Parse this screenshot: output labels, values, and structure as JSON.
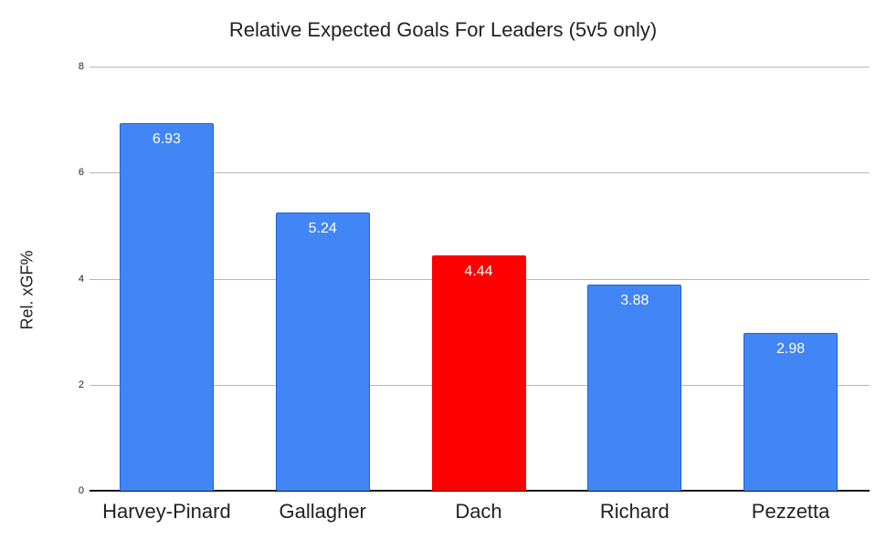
{
  "chart_data": {
    "type": "bar",
    "title": "Relative Expected Goals For Leaders (5v5 only)",
    "xlabel": "",
    "ylabel": "Rel. xGF%",
    "ylim": [
      0,
      8
    ],
    "yticks": [
      0,
      2,
      4,
      6,
      8
    ],
    "grid": true,
    "legend": "none",
    "categories": [
      "Harvey-Pinard",
      "Gallagher",
      "Dach",
      "Richard",
      "Pezzetta"
    ],
    "values": [
      6.93,
      5.24,
      4.44,
      3.88,
      2.98
    ],
    "value_labels": [
      "6.93",
      "5.24",
      "4.44",
      "3.88",
      "2.98"
    ],
    "colors": [
      "#4285f4",
      "#4285f4",
      "#ff0000",
      "#4285f4",
      "#4285f4"
    ]
  }
}
